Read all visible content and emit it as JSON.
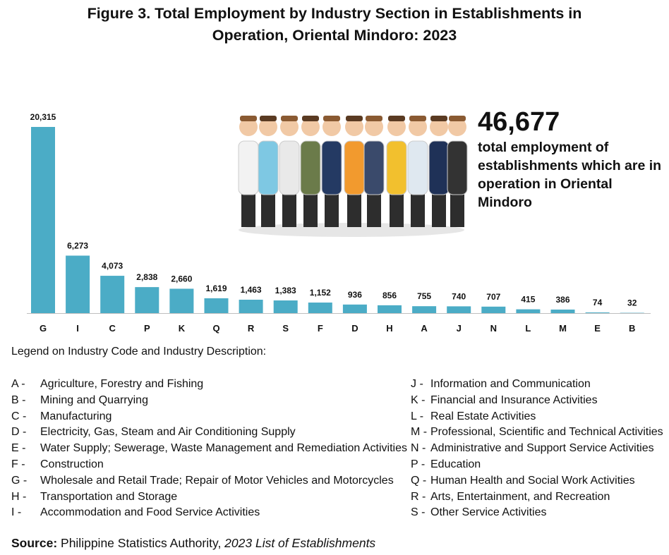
{
  "title_line1": "Figure 3. Total Employment by Industry Section in Establishments in",
  "title_line2": "Operation, Oriental Mindoro: 2023",
  "callout": {
    "value": "46,677",
    "text": "total employment of establishments which are in operation in Oriental Mindoro"
  },
  "colors": {
    "bar": "#4BACC6",
    "axis": "#bfbfbf"
  },
  "chart_data": {
    "type": "bar",
    "categories": [
      "G",
      "I",
      "C",
      "P",
      "K",
      "Q",
      "R",
      "S",
      "F",
      "D",
      "H",
      "A",
      "J",
      "N",
      "L",
      "M",
      "E",
      "B"
    ],
    "values": [
      20315,
      6273,
      4073,
      2838,
      2660,
      1619,
      1463,
      1383,
      1152,
      936,
      856,
      755,
      740,
      707,
      415,
      386,
      74,
      32
    ],
    "labels": [
      "20,315",
      "6,273",
      "4,073",
      "2,838",
      "2,660",
      "1,619",
      "1,463",
      "1,383",
      "1,152",
      "936",
      "856",
      "755",
      "740",
      "707",
      "415",
      "386",
      "74",
      "32"
    ],
    "ylim": [
      0,
      20315
    ],
    "grid": false,
    "legend": "none"
  },
  "legend_title": "Legend on Industry Code and Industry Description:",
  "legend_left": [
    {
      "code": "A -",
      "desc": "Agriculture, Forestry and Fishing"
    },
    {
      "code": "B -",
      "desc": "Mining and Quarrying"
    },
    {
      "code": "C -",
      "desc": "Manufacturing"
    },
    {
      "code": "D -",
      "desc": "Electricity, Gas, Steam and Air Conditioning Supply"
    },
    {
      "code": "E -",
      "desc": "Water Supply; Sewerage, Waste Management and Remediation Activities"
    },
    {
      "code": "F -",
      "desc": "Construction"
    },
    {
      "code": "G -",
      "desc": "Wholesale and Retail Trade; Repair of Motor Vehicles and Motorcycles"
    },
    {
      "code": "H -",
      "desc": "Transportation and Storage"
    },
    {
      "code": "I -",
      "desc": "Accommodation and Food Service Activities"
    }
  ],
  "legend_right": [
    {
      "code": "J -",
      "desc": "Information and Communication"
    },
    {
      "code": "K -",
      "desc": "Financial and Insurance Activities"
    },
    {
      "code": "L -",
      "desc": "Real Estate Activities"
    },
    {
      "code": "M -",
      "desc": "Professional, Scientific and Technical Activities"
    },
    {
      "code": "N -",
      "desc": "Administrative and Support Service Activities"
    },
    {
      "code": "P -",
      "desc": "Education"
    },
    {
      "code": "Q -",
      "desc": "Human Health and Social Work Activities"
    },
    {
      "code": "R -",
      "desc": "Arts, Entertainment, and Recreation"
    },
    {
      "code": "S -",
      "desc": "Other Service Activities"
    }
  ],
  "source": {
    "label": "Source:",
    "text": " Philippine Statistics Authority, ",
    "publication": "2023 List of Establishments"
  }
}
